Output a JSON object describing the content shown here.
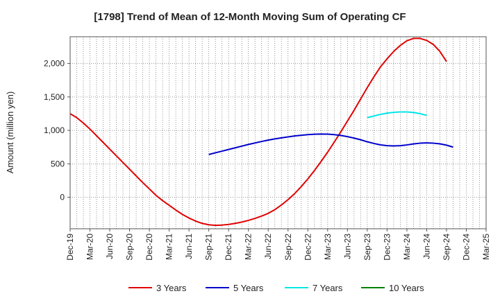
{
  "chart_data": {
    "type": "line",
    "title": "[1798]  Trend of Mean of 12-Month Moving Sum of Operating CF",
    "xlabel": "",
    "ylabel": "Amount (million yen)",
    "ylim": [
      -470,
      2400
    ],
    "y_ticks": [
      0,
      500,
      1000,
      1500,
      2000
    ],
    "y_tick_labels": [
      "0",
      "500",
      "1,000",
      "1,500",
      "2,000"
    ],
    "grid": true,
    "legend_position": "bottom",
    "x_tick_labels": [
      "Dec-19",
      "Mar-20",
      "Jun-20",
      "Sep-20",
      "Dec-20",
      "Mar-21",
      "Jun-21",
      "Sep-21",
      "Dec-21",
      "Mar-22",
      "Jun-22",
      "Sep-22",
      "Dec-22",
      "Mar-23",
      "Jun-23",
      "Sep-23",
      "Dec-23",
      "Mar-24",
      "Jun-24",
      "Sep-24",
      "Dec-24",
      "Mar-25"
    ],
    "series": [
      {
        "name": "3 Years",
        "color": "#e00000",
        "start_month": 0,
        "values": [
          1250,
          1190,
          1110,
          1020,
          920,
          820,
          720,
          620,
          520,
          420,
          320,
          220,
          125,
          30,
          -50,
          -120,
          -190,
          -255,
          -310,
          -355,
          -390,
          -410,
          -420,
          -415,
          -405,
          -390,
          -370,
          -345,
          -315,
          -280,
          -240,
          -185,
          -115,
          -35,
          55,
          160,
          275,
          400,
          535,
          675,
          825,
          980,
          1140,
          1300,
          1470,
          1640,
          1800,
          1950,
          2070,
          2180,
          2270,
          2340,
          2375,
          2375,
          2345,
          2285,
          2180,
          2030
        ]
      },
      {
        "name": "5 Years",
        "color": "#0000cc",
        "start_month": 21,
        "values": [
          640,
          665,
          690,
          715,
          740,
          765,
          790,
          812,
          835,
          855,
          873,
          889,
          903,
          917,
          927,
          937,
          943,
          946,
          944,
          937,
          925,
          907,
          885,
          860,
          830,
          805,
          784,
          772,
          768,
          772,
          783,
          798,
          809,
          813,
          809,
          799,
          780,
          750
        ]
      },
      {
        "name": "7 Years",
        "color": "#00e5e5",
        "start_month": 45,
        "values": [
          1190,
          1215,
          1240,
          1258,
          1270,
          1276,
          1276,
          1268,
          1250,
          1225
        ]
      },
      {
        "name": "10 Years",
        "color": "#008000",
        "start_month": 0,
        "values": []
      }
    ]
  }
}
